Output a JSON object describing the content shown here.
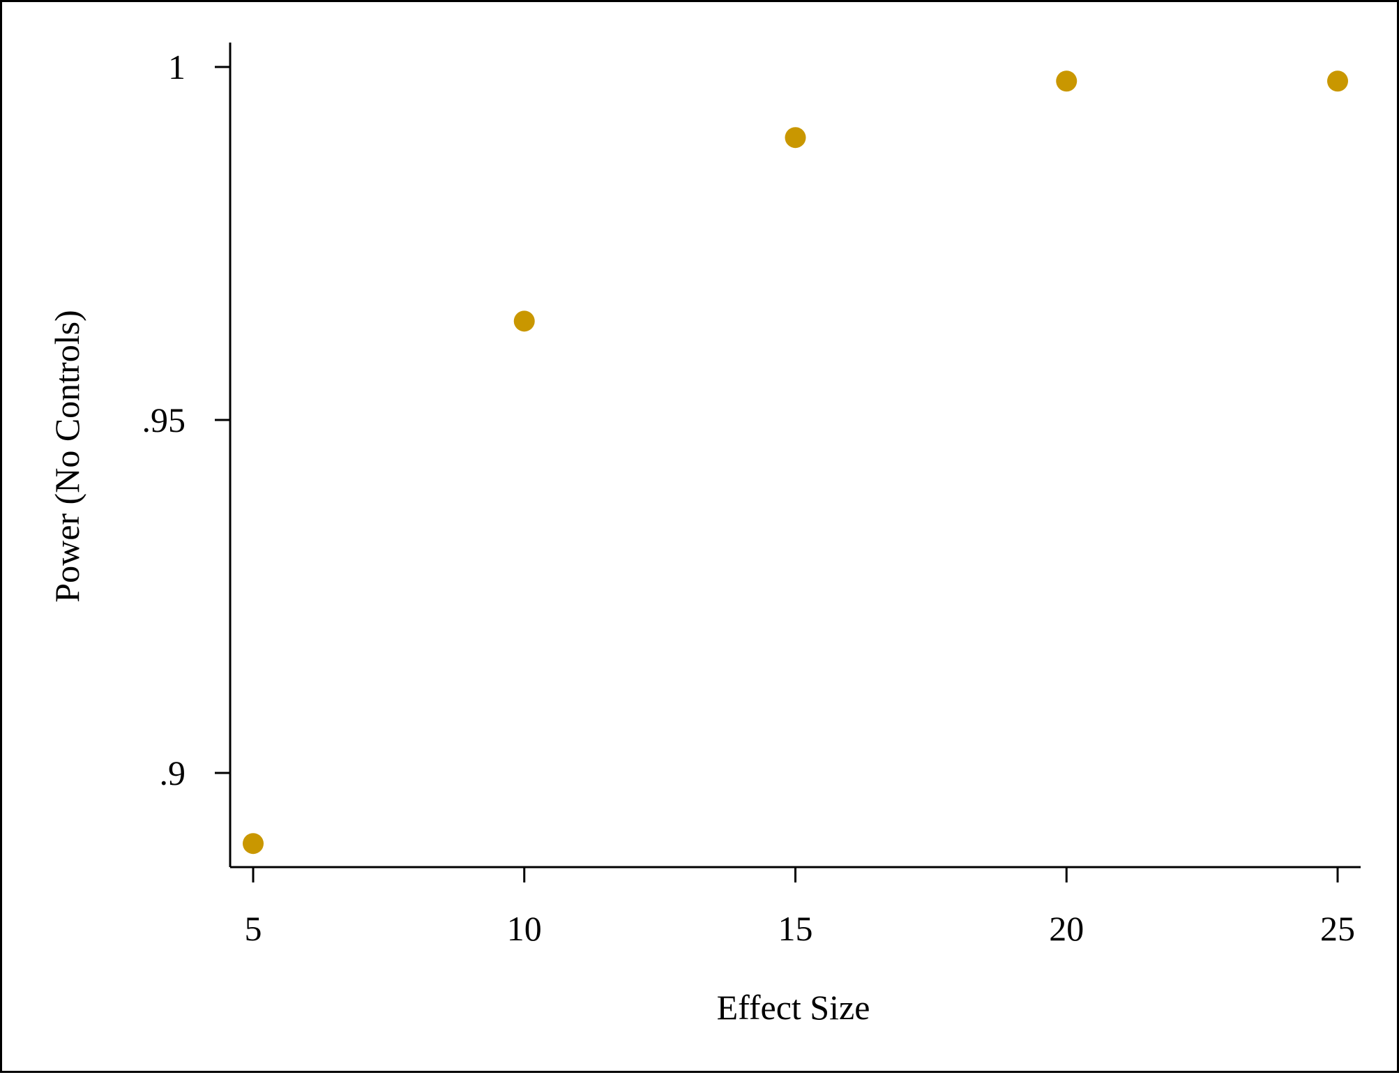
{
  "chart_data": {
    "type": "scatter",
    "title": "",
    "xlabel": "Effect Size",
    "ylabel": "Power (No Controls)",
    "x_ticks": [
      {
        "value": 5,
        "label": "5"
      },
      {
        "value": 10,
        "label": "10"
      },
      {
        "value": 15,
        "label": "15"
      },
      {
        "value": 20,
        "label": "20"
      },
      {
        "value": 25,
        "label": "25"
      }
    ],
    "y_ticks": [
      {
        "value": 0.9,
        "label": ".9"
      },
      {
        "value": 0.95,
        "label": ".95"
      },
      {
        "value": 1.0,
        "label": "1"
      }
    ],
    "xlim": [
      5,
      25
    ],
    "ylim": [
      0.9,
      1.0
    ],
    "grid": false,
    "series": [
      {
        "color": "#c99700",
        "points": [
          {
            "x": 5,
            "y": 0.89
          },
          {
            "x": 10,
            "y": 0.964
          },
          {
            "x": 15,
            "y": 0.99
          },
          {
            "x": 20,
            "y": 0.998
          },
          {
            "x": 25,
            "y": 0.998
          }
        ]
      }
    ]
  }
}
